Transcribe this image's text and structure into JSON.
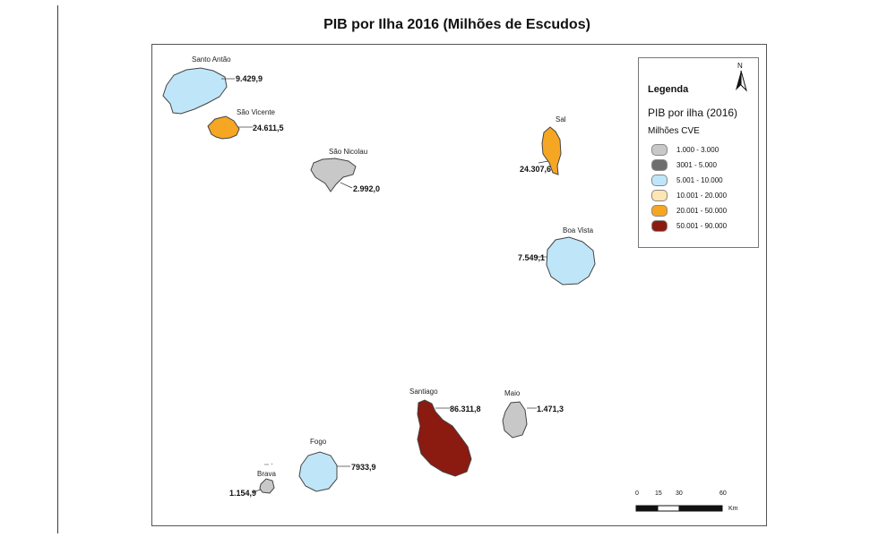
{
  "title": "PIB por Ilha 2016 (Milhões de Escudos)",
  "legend": {
    "title": "Legenda",
    "subtitle": "PIB por ilha (2016)",
    "unit": "Milhões CVE",
    "classes": [
      {
        "label": "1.000 - 3.000",
        "color": "#c8c8c8"
      },
      {
        "label": "3001 - 5.000",
        "color": "#6e6e6e"
      },
      {
        "label": "5.001 - 10.000",
        "color": "#bfe6f8"
      },
      {
        "label": "10.001 - 20.000",
        "color": "#fde6b4"
      },
      {
        "label": "20.001 - 50.000",
        "color": "#f5a623"
      },
      {
        "label": "50.001 - 90.000",
        "color": "#8b1a10"
      }
    ]
  },
  "north_arrow": {
    "label": "N"
  },
  "scale_bar": {
    "ticks": [
      "0",
      "15",
      "30",
      "60"
    ],
    "unit": "Km"
  },
  "islands": [
    {
      "name": "Santo Antão",
      "value": "9.429,9",
      "color": "#bfe6f8"
    },
    {
      "name": "São Vicente",
      "value": "24.611,5",
      "color": "#f5a623"
    },
    {
      "name": "São Nicolau",
      "value": "2.992,0",
      "color": "#c8c8c8"
    },
    {
      "name": "Sal",
      "value": "24.307,6",
      "color": "#f5a623"
    },
    {
      "name": "Boa Vista",
      "value": "7.549,1",
      "color": "#bfe6f8"
    },
    {
      "name": "Maio",
      "value": "1.471,3",
      "color": "#c8c8c8"
    },
    {
      "name": "Santiago",
      "value": "86.311,8",
      "color": "#8b1a10"
    },
    {
      "name": "Fogo",
      "value": "7933,9",
      "color": "#bfe6f8"
    },
    {
      "name": "Brava",
      "value": "1.154,9",
      "color": "#c8c8c8"
    }
  ]
}
